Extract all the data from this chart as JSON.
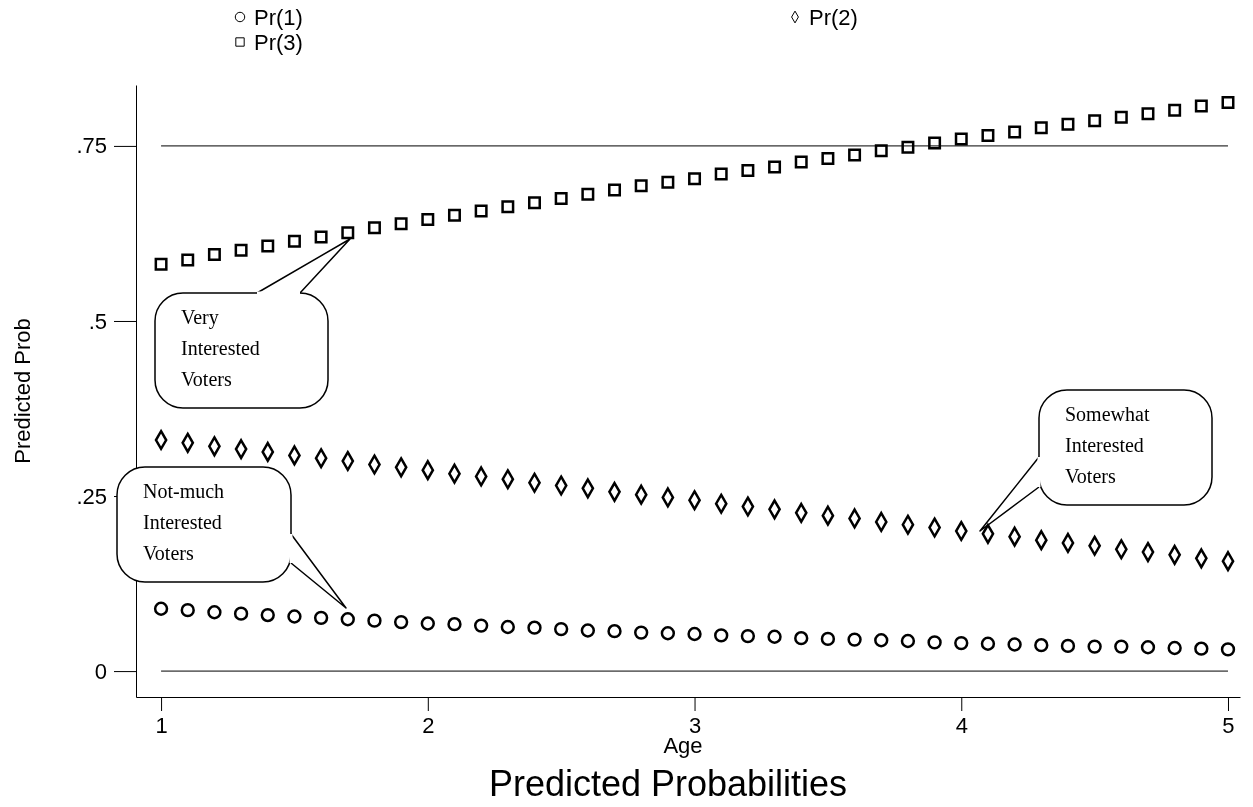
{
  "chart_data": {
    "type": "scatter",
    "title": "Predicted Probabilities",
    "xlabel": "Age",
    "ylabel": "Predicted Prob",
    "x": [
      1,
      1.1,
      1.2,
      1.3,
      1.4,
      1.5,
      1.6,
      1.7,
      1.8,
      1.9,
      2,
      2.1,
      2.2,
      2.3,
      2.4,
      2.5,
      2.6,
      2.7,
      2.8,
      2.9,
      3,
      3.1,
      3.2,
      3.3,
      3.4,
      3.5,
      3.6,
      3.7,
      3.8,
      3.9,
      4,
      4.1,
      4.2,
      4.3,
      4.4,
      4.5,
      4.6,
      4.7,
      4.8,
      4.9,
      5
    ],
    "series": [
      {
        "name": "Pr(1)",
        "color": "#000000",
        "marker": "circle",
        "values": [
          0.089,
          0.087,
          0.084,
          0.082,
          0.08,
          0.078,
          0.076,
          0.074,
          0.072,
          0.07,
          0.068,
          0.067,
          0.065,
          0.063,
          0.062,
          0.06,
          0.058,
          0.057,
          0.055,
          0.054,
          0.053,
          0.051,
          0.05,
          0.049,
          0.047,
          0.046,
          0.045,
          0.044,
          0.043,
          0.041,
          0.04,
          0.039,
          0.038,
          0.037,
          0.036,
          0.035,
          0.035,
          0.034,
          0.033,
          0.032,
          0.031
        ]
      },
      {
        "name": "Pr(2)",
        "color": "#000000",
        "marker": "diamond",
        "values": [
          0.33,
          0.326,
          0.321,
          0.317,
          0.313,
          0.308,
          0.304,
          0.3,
          0.295,
          0.291,
          0.287,
          0.282,
          0.278,
          0.274,
          0.269,
          0.265,
          0.261,
          0.256,
          0.252,
          0.248,
          0.244,
          0.239,
          0.235,
          0.231,
          0.226,
          0.222,
          0.218,
          0.213,
          0.209,
          0.205,
          0.2,
          0.196,
          0.192,
          0.187,
          0.183,
          0.179,
          0.174,
          0.17,
          0.166,
          0.161,
          0.157
        ]
      },
      {
        "name": "Pr(3)",
        "color": "#000000",
        "marker": "square",
        "values": [
          0.581,
          0.587,
          0.595,
          0.601,
          0.607,
          0.614,
          0.62,
          0.626,
          0.633,
          0.639,
          0.645,
          0.651,
          0.657,
          0.663,
          0.669,
          0.675,
          0.681,
          0.687,
          0.693,
          0.698,
          0.703,
          0.71,
          0.715,
          0.72,
          0.727,
          0.732,
          0.737,
          0.743,
          0.748,
          0.754,
          0.76,
          0.765,
          0.77,
          0.776,
          0.781,
          0.786,
          0.791,
          0.796,
          0.801,
          0.807,
          0.812
        ]
      }
    ],
    "xlim": [
      0.906,
      5.045
    ],
    "xticks": [
      1,
      2,
      3,
      4,
      5
    ],
    "ylim": [
      -0.037,
      0.837
    ],
    "yticks": [
      {
        "value": 0,
        "label": "0"
      },
      {
        "value": 0.25,
        "label": ".25"
      },
      {
        "value": 0.5,
        "label": ".5"
      },
      {
        "value": 0.75,
        "label": ".75"
      }
    ],
    "ref_lines": [
      {
        "axis": "y",
        "value": 0,
        "color": "#000000"
      },
      {
        "axis": "y",
        "value": 0.75,
        "color": "#000000"
      }
    ],
    "annotations": [
      "Very\nInterested\nVoters",
      "Somewhat\nInterested\nVoters",
      "Not-much\nInterested\nVoters"
    ],
    "grid": false,
    "legend": "top"
  }
}
